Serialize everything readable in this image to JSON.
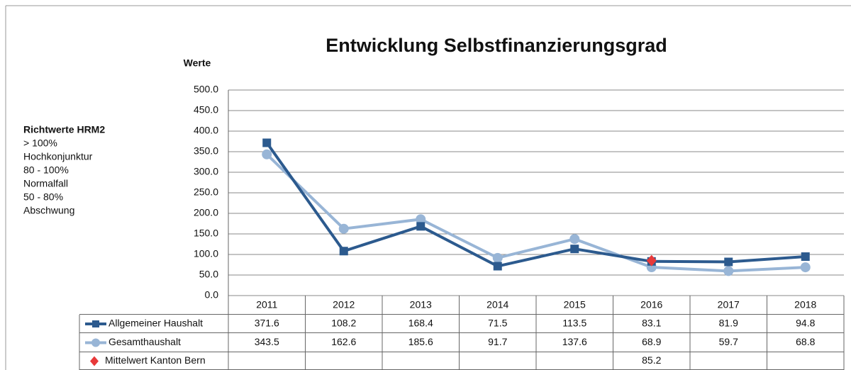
{
  "chart_data": {
    "type": "line",
    "title": "Entwicklung Selbstfinanzierungsgrad",
    "y_axis_label": "Werte",
    "note": {
      "title": "Richtwerte HRM2",
      "lines": [
        "> 100%",
        "Hochkonjunktur",
        "80 - 100%",
        "Normalfall",
        "50 - 80%",
        "Abschwung"
      ]
    },
    "categories": [
      "2011",
      "2012",
      "2013",
      "2014",
      "2015",
      "2016",
      "2017",
      "2018"
    ],
    "series": [
      {
        "name": "Allgemeiner Haushalt",
        "color": "#2c5a8e",
        "marker": "square",
        "values": [
          371.6,
          108.2,
          168.4,
          71.5,
          113.5,
          83.1,
          81.9,
          94.8
        ]
      },
      {
        "name": "Gesamthaushalt",
        "color": "#98b5d6",
        "marker": "circle",
        "values": [
          343.5,
          162.6,
          185.6,
          91.7,
          137.6,
          68.9,
          59.7,
          68.8
        ]
      },
      {
        "name": "Mittelwert Kanton Bern",
        "color": "#e8393a",
        "marker": "diamond",
        "values": [
          null,
          null,
          null,
          null,
          null,
          85.2,
          null,
          null
        ]
      }
    ],
    "ylim": [
      0,
      500
    ],
    "yticks": [
      {
        "value": 0,
        "label": "0.0"
      },
      {
        "value": 50,
        "label": "50.0"
      },
      {
        "value": 100,
        "label": "100.0"
      },
      {
        "value": 150,
        "label": "150.0"
      },
      {
        "value": 200,
        "label": "200.0"
      },
      {
        "value": 250,
        "label": "250.0"
      },
      {
        "value": 300,
        "label": "300.0"
      },
      {
        "value": 350,
        "label": "350.0"
      },
      {
        "value": 400,
        "label": "400.0"
      },
      {
        "value": 450,
        "label": "450.0"
      },
      {
        "value": 500,
        "label": "500.0"
      }
    ],
    "grid": true
  }
}
